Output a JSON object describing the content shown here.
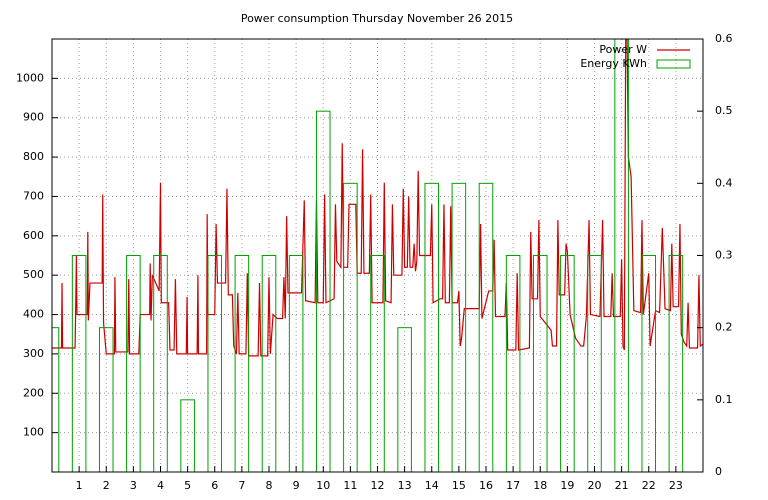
{
  "chart_data": {
    "type": "line",
    "title": "Power consumption Thursday November 26 2015",
    "xlim": [
      0,
      24
    ],
    "xticks": [
      1,
      2,
      3,
      4,
      5,
      6,
      7,
      8,
      9,
      10,
      11,
      12,
      13,
      14,
      15,
      16,
      17,
      18,
      19,
      20,
      21,
      22,
      23
    ],
    "ylim": [
      0,
      1100
    ],
    "yticks": [
      100,
      200,
      300,
      400,
      500,
      600,
      700,
      800,
      900,
      1000
    ],
    "y2lim": [
      0,
      0.6
    ],
    "y2ticks": [
      0,
      0.1,
      0.2,
      0.3,
      0.4,
      0.5,
      0.6
    ],
    "grid": true,
    "legend": "top-right",
    "series": [
      {
        "name": "Power W",
        "color": "#cc0000",
        "type": "line",
        "x": [
          0,
          0.35,
          0.37,
          0.39,
          0.85,
          0.87,
          0.9,
          0.92,
          1.3,
          1.32,
          1.34,
          1.4,
          1.85,
          1.87,
          1.9,
          2.0,
          2.3,
          2.32,
          2.35,
          2.8,
          2.83,
          2.86,
          3.2,
          3.25,
          3.6,
          3.62,
          3.65,
          3.7,
          3.95,
          4.0,
          4.03,
          4.3,
          4.35,
          4.5,
          4.55,
          4.6,
          4.95,
          4.98,
          5.0,
          5.35,
          5.38,
          5.4,
          5.7,
          5.72,
          5.75,
          6.0,
          6.05,
          6.1,
          6.4,
          6.45,
          6.5,
          6.65,
          6.7,
          6.8,
          6.85,
          6.9,
          7.15,
          7.2,
          7.25,
          7.6,
          7.65,
          7.7,
          7.95,
          8.0,
          8.05,
          8.15,
          8.3,
          8.5,
          8.55,
          8.6,
          8.65,
          8.7,
          9.2,
          9.3,
          9.35,
          9.7,
          9.75,
          9.8,
          10.0,
          10.05,
          10.1,
          10.4,
          10.45,
          10.5,
          10.65,
          10.7,
          10.75,
          10.9,
          10.95,
          11.2,
          11.25,
          11.4,
          11.45,
          11.5,
          11.7,
          11.75,
          11.8,
          12.2,
          12.25,
          12.3,
          12.5,
          12.55,
          12.6,
          12.9,
          12.95,
          13.0,
          13.1,
          13.15,
          13.2,
          13.3,
          13.35,
          13.4,
          13.45,
          13.5,
          13.55,
          13.95,
          14.0,
          14.05,
          14.3,
          14.4,
          14.45,
          14.5,
          14.65,
          14.7,
          14.75,
          14.95,
          15.0,
          15.05,
          15.1,
          15.2,
          15.75,
          15.8,
          15.85,
          16.1,
          16.25,
          16.3,
          16.35,
          16.7,
          16.75,
          16.8,
          17.1,
          17.15,
          17.2,
          17.6,
          17.65,
          17.7,
          17.9,
          17.95,
          18.0,
          18.4,
          18.45,
          18.6,
          18.65,
          18.7,
          18.9,
          18.95,
          19.0,
          19.1,
          19.3,
          19.5,
          19.6,
          19.7,
          19.8,
          19.85,
          20.2,
          20.3,
          20.35,
          20.6,
          20.65,
          20.7,
          20.95,
          21.0,
          21.05,
          21.1,
          21.15,
          21.2,
          21.25,
          21.35,
          21.45,
          21.7,
          21.75,
          21.8,
          22.0,
          22.05,
          22.25,
          22.4,
          22.5,
          22.6,
          22.8,
          22.85,
          22.9,
          23.1,
          23.15,
          23.2,
          23.3,
          23.4,
          23.45,
          23.5,
          23.8,
          23.85,
          23.9,
          24.0
        ],
        "values": [
          315,
          315,
          480,
          315,
          315,
          400,
          550,
          400,
          400,
          610,
          385,
          480,
          480,
          705,
          380,
          300,
          300,
          495,
          305,
          305,
          490,
          300,
          300,
          400,
          400,
          530,
          385,
          500,
          460,
          735,
          430,
          430,
          310,
          310,
          490,
          300,
          300,
          445,
          300,
          300,
          500,
          300,
          300,
          655,
          400,
          400,
          630,
          480,
          480,
          720,
          450,
          450,
          320,
          300,
          455,
          300,
          300,
          505,
          295,
          295,
          480,
          295,
          295,
          495,
          300,
          400,
          390,
          390,
          495,
          390,
          650,
          455,
          455,
          690,
          435,
          430,
          690,
          430,
          430,
          705,
          430,
          440,
          680,
          535,
          520,
          835,
          520,
          520,
          680,
          680,
          505,
          505,
          820,
          505,
          505,
          705,
          430,
          430,
          735,
          435,
          430,
          680,
          500,
          500,
          720,
          520,
          520,
          700,
          520,
          520,
          580,
          510,
          535,
          765,
          550,
          550,
          680,
          430,
          440,
          440,
          680,
          430,
          430,
          675,
          430,
          430,
          460,
          320,
          340,
          415,
          415,
          630,
          390,
          460,
          460,
          590,
          395,
          395,
          480,
          310,
          310,
          505,
          310,
          315,
          610,
          440,
          440,
          640,
          395,
          360,
          320,
          320,
          640,
          450,
          450,
          580,
          560,
          400,
          340,
          320,
          320,
          395,
          640,
          400,
          395,
          640,
          395,
          395,
          505,
          395,
          395,
          540,
          320,
          310,
          1100,
          1100,
          800,
          750,
          410,
          405,
          640,
          400,
          505,
          320,
          410,
          405,
          620,
          415,
          410,
          580,
          420,
          420,
          630,
          350,
          330,
          320,
          430,
          315,
          315,
          500,
          320,
          325
        ]
      },
      {
        "name": "Energy KWh",
        "color": "#00a000",
        "type": "bar",
        "axis": "y2",
        "x": [
          0,
          1,
          2,
          3,
          4,
          5,
          6,
          7,
          8,
          9,
          10,
          11,
          12,
          13,
          14,
          15,
          16,
          17,
          18,
          19,
          20,
          21,
          22,
          23
        ],
        "values": [
          0.2,
          0.3,
          0.2,
          0.3,
          0.3,
          0.1,
          0.3,
          0.3,
          0.3,
          0.3,
          0.5,
          0.4,
          0.3,
          0.2,
          0.4,
          0.4,
          0.4,
          0.3,
          0.3,
          0.3,
          0.3,
          0.6,
          0.3,
          0.3
        ]
      }
    ]
  }
}
